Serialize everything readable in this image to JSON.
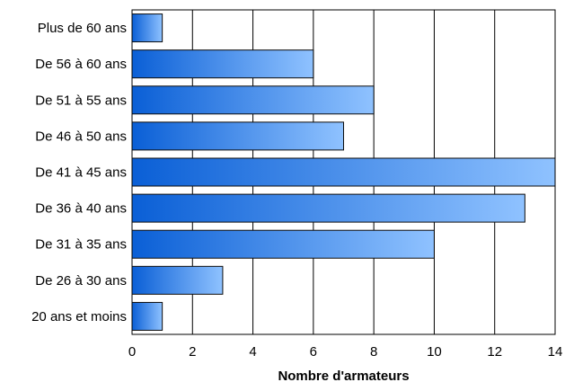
{
  "chart_data": {
    "type": "bar",
    "orientation": "horizontal",
    "categories": [
      "Plus de 60 ans",
      "De 56 à 60 ans",
      "De 51 à 55 ans",
      "De 46 à 50 ans",
      "De 41 à 45 ans",
      "De 36 à 40 ans",
      "De 31 à 35 ans",
      "De 26 à 30 ans",
      "20 ans et moins"
    ],
    "values": [
      1,
      6,
      8,
      7,
      14,
      13,
      10,
      3,
      1
    ],
    "title": "",
    "xlabel": "Nombre d'armateurs",
    "ylabel": "",
    "xlim": [
      0,
      14
    ],
    "xticks": [
      0,
      2,
      4,
      6,
      8,
      10,
      12,
      14
    ],
    "grid": "vertical",
    "legend": "none",
    "colors": {
      "bar_start": "#0a5fd6",
      "bar_end": "#8fc2ff",
      "bar_edge": "#0d0d0d",
      "grid": "#000000"
    }
  }
}
